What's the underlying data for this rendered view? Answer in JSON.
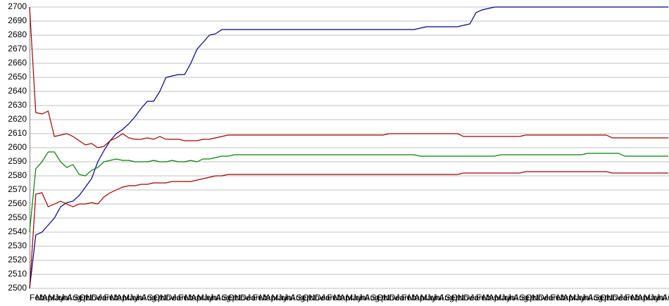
{
  "chart_data": {
    "type": "line",
    "categories": [
      "Feb",
      "Mar",
      "Apr",
      "May",
      "Jun",
      "Jul",
      "Aug",
      "Sep",
      "Oct",
      "Nov",
      "Dec",
      "Jan",
      "Feb",
      "Mar",
      "Apr",
      "May",
      "Jun",
      "Jul",
      "Aug",
      "Sep",
      "Oct",
      "Nov",
      "Dec",
      "Jan",
      "Feb",
      "Mar",
      "Apr",
      "May",
      "Jun",
      "Jul",
      "Aug",
      "Sep",
      "Oct",
      "Nov",
      "Dec",
      "Jan",
      "Feb",
      "Mar",
      "Apr",
      "May",
      "Jun",
      "Jul",
      "Aug",
      "Sep",
      "Oct",
      "Nov",
      "Dec",
      "Jan",
      "Feb",
      "Mar",
      "Apr",
      "May",
      "Jun",
      "Jul",
      "Aug",
      "Sep",
      "Oct",
      "Nov",
      "Dec",
      "Jan",
      "Feb",
      "Mar",
      "Apr",
      "May",
      "Jun",
      "Jul",
      "Aug",
      "Sep",
      "Oct",
      "Nov",
      "Dec",
      "Jan",
      "Feb",
      "Mar",
      "Apr",
      "May",
      "Jun",
      "Jul",
      "Aug",
      "Sep",
      "Oct",
      "Nov",
      "Dec",
      "Jan",
      "Feb",
      "Mar",
      "Apr",
      "May",
      "Jun",
      "Jul",
      "Aug",
      "Sep",
      "Oct",
      "Nov",
      "Dec",
      "Jan",
      "Feb",
      "Mar",
      "Apr",
      "May",
      "Jun",
      "Jul",
      "Aug",
      "Sep"
    ],
    "series": [
      {
        "color": "#000080",
        "values": [
          2500,
          2538,
          2540,
          2545,
          2550,
          2558,
          2561,
          2562,
          2566,
          2572,
          2578,
          2590,
          2598,
          2605,
          2610,
          2613,
          2617,
          2622,
          2628,
          2633,
          2633,
          2640,
          2650,
          2651,
          2652,
          2652,
          2660,
          2670,
          2675,
          2680,
          2681,
          2684,
          2684,
          2684,
          2684,
          2684,
          2684,
          2684,
          2684,
          2684,
          2684,
          2684,
          2684,
          2684,
          2684,
          2684,
          2684,
          2684,
          2684,
          2684,
          2684,
          2684,
          2684,
          2684,
          2684,
          2684,
          2684,
          2684,
          2684,
          2684,
          2684,
          2684,
          2684,
          2685,
          2686,
          2686,
          2686,
          2686,
          2686,
          2686,
          2687,
          2688,
          2696,
          2698,
          2699,
          2700,
          2700,
          2700,
          2700,
          2700,
          2700,
          2700,
          2700,
          2700,
          2700,
          2700,
          2700,
          2700,
          2700,
          2700,
          2700,
          2700,
          2700,
          2700,
          2700,
          2700,
          2700,
          2700,
          2700,
          2700,
          2700,
          2700,
          2700,
          2700
        ]
      },
      {
        "color": "#008000",
        "values": [
          2540,
          2585,
          2590,
          2597,
          2597,
          2590,
          2586,
          2588,
          2581,
          2580,
          2584,
          2586,
          2590,
          2591,
          2592,
          2591,
          2591,
          2590,
          2590,
          2590,
          2591,
          2590,
          2590,
          2591,
          2590,
          2590,
          2591,
          2590,
          2592,
          2592,
          2593,
          2594,
          2594,
          2595,
          2595,
          2595,
          2595,
          2595,
          2595,
          2595,
          2595,
          2595,
          2595,
          2595,
          2595,
          2595,
          2595,
          2595,
          2595,
          2595,
          2595,
          2595,
          2595,
          2595,
          2595,
          2595,
          2595,
          2595,
          2595,
          2595,
          2595,
          2595,
          2595,
          2594,
          2594,
          2594,
          2594,
          2594,
          2594,
          2594,
          2594,
          2594,
          2594,
          2594,
          2594,
          2594,
          2595,
          2595,
          2595,
          2595,
          2595,
          2595,
          2595,
          2595,
          2595,
          2595,
          2595,
          2595,
          2595,
          2595,
          2596,
          2596,
          2596,
          2596,
          2596,
          2596,
          2594,
          2594,
          2594,
          2594,
          2594,
          2594,
          2594,
          2594
        ]
      },
      {
        "color": "#a00000",
        "values": [
          2700,
          2625,
          2624,
          2626,
          2608,
          2609,
          2610,
          2608,
          2605,
          2602,
          2603,
          2600,
          2601,
          2605,
          2607,
          2610,
          2607,
          2606,
          2606,
          2607,
          2606,
          2608,
          2606,
          2606,
          2606,
          2605,
          2605,
          2605,
          2606,
          2606,
          2607,
          2608,
          2609,
          2609,
          2609,
          2609,
          2609,
          2609,
          2609,
          2609,
          2609,
          2609,
          2609,
          2609,
          2609,
          2609,
          2609,
          2609,
          2609,
          2609,
          2609,
          2609,
          2609,
          2609,
          2609,
          2609,
          2609,
          2609,
          2610,
          2610,
          2610,
          2610,
          2610,
          2610,
          2610,
          2610,
          2610,
          2610,
          2610,
          2610,
          2608,
          2608,
          2608,
          2608,
          2608,
          2608,
          2608,
          2608,
          2608,
          2608,
          2609,
          2609,
          2609,
          2609,
          2609,
          2609,
          2609,
          2609,
          2609,
          2609,
          2609,
          2609,
          2609,
          2609,
          2607,
          2607,
          2607,
          2607,
          2607,
          2607,
          2607,
          2607,
          2607,
          2607
        ]
      },
      {
        "color": "#a00000",
        "values": [
          2500,
          2567,
          2568,
          2558,
          2560,
          2562,
          2560,
          2558,
          2560,
          2560,
          2561,
          2560,
          2565,
          2568,
          2570,
          2572,
          2573,
          2573,
          2574,
          2574,
          2575,
          2575,
          2575,
          2576,
          2576,
          2576,
          2576,
          2577,
          2578,
          2579,
          2580,
          2580,
          2581,
          2581,
          2581,
          2581,
          2581,
          2581,
          2581,
          2581,
          2581,
          2581,
          2581,
          2581,
          2581,
          2581,
          2581,
          2581,
          2581,
          2581,
          2581,
          2581,
          2581,
          2581,
          2581,
          2581,
          2581,
          2581,
          2581,
          2581,
          2581,
          2581,
          2581,
          2581,
          2581,
          2581,
          2581,
          2581,
          2581,
          2581,
          2582,
          2582,
          2582,
          2582,
          2582,
          2582,
          2582,
          2582,
          2582,
          2582,
          2583,
          2583,
          2583,
          2583,
          2583,
          2583,
          2583,
          2583,
          2583,
          2583,
          2583,
          2583,
          2583,
          2583,
          2582,
          2582,
          2582,
          2582,
          2582,
          2582,
          2582,
          2582,
          2582,
          2582
        ]
      }
    ],
    "ylim": [
      2500,
      2700
    ],
    "yticks": [
      2500,
      2510,
      2520,
      2530,
      2540,
      2550,
      2560,
      2570,
      2580,
      2590,
      2600,
      2610,
      2620,
      2630,
      2640,
      2650,
      2660,
      2670,
      2680,
      2690,
      2700
    ],
    "grid": true
  }
}
